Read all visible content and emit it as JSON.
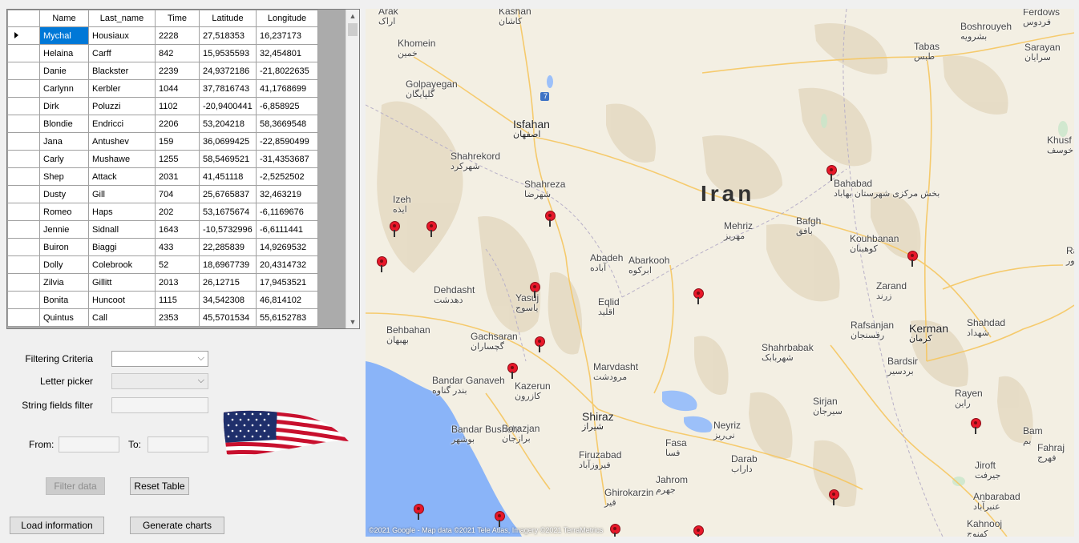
{
  "grid": {
    "columns": [
      "Name",
      "Last_name",
      "Time",
      "Latitude",
      "Longitude"
    ],
    "rows": [
      [
        "Mychal",
        "Housiaux",
        "2228",
        "27,518353",
        "16,237173"
      ],
      [
        "Helaina",
        "Carff",
        "842",
        "15,9535593",
        "32,454801"
      ],
      [
        "Danie",
        "Blackster",
        "2239",
        "24,9372186",
        "-21,8022635"
      ],
      [
        "Carlynn",
        "Kerbler",
        "1044",
        "37,7816743",
        "41,1768699"
      ],
      [
        "Dirk",
        "Poluzzi",
        "1102",
        "-20,9400441",
        "-6,858925"
      ],
      [
        "Blondie",
        "Endricci",
        "2206",
        "53,204218",
        "58,3669548"
      ],
      [
        "Jana",
        "Antushev",
        "159",
        "36,0699425",
        "-22,8590499"
      ],
      [
        "Carly",
        "Mushawe",
        "1255",
        "58,5469521",
        "-31,4353687"
      ],
      [
        "Shep",
        "Attack",
        "2031",
        "41,451118",
        "-2,5252502"
      ],
      [
        "Dusty",
        "Gill",
        "704",
        "25,6765837",
        "32,463219"
      ],
      [
        "Romeo",
        "Haps",
        "202",
        "53,1675674",
        "-6,1169676"
      ],
      [
        "Jennie",
        "Sidnall",
        "1643",
        "-10,5732996",
        "-6,6111441"
      ],
      [
        "Buiron",
        "Biaggi",
        "433",
        "22,285839",
        "14,9269532"
      ],
      [
        "Dolly",
        "Colebrook",
        "52",
        "18,6967739",
        "20,4314732"
      ],
      [
        "Zilvia",
        "Gillitt",
        "2013",
        "26,12715",
        "17,9453521"
      ],
      [
        "Bonita",
        "Huncoot",
        "1115",
        "34,542308",
        "46,814102"
      ],
      [
        "Quintus",
        "Call",
        "2353",
        "45,5701534",
        "55,6152783"
      ]
    ]
  },
  "filters": {
    "filtering_criteria_label": "Filtering Criteria",
    "letter_picker_label": "Letter picker",
    "string_filter_label": "String fields filter",
    "from_label": "From:",
    "to_label": "To:"
  },
  "buttons": {
    "filter_data": "Filter data",
    "reset_table": "Reset Table",
    "load_information": "Load information",
    "generate_charts": "Generate charts"
  },
  "flag": "us-flag-image",
  "map": {
    "country": "Iran",
    "attribution": "©2021 Google - Map data ©2021 Tele Atlas, Imagery ©2021 TerraMetrics",
    "cities": [
      {
        "en": "Kashan",
        "fa": "کاشان"
      },
      {
        "en": "Khomein",
        "fa": "خمین"
      },
      {
        "en": "Golpayegan",
        "fa": "گلپایگان"
      },
      {
        "en": "Isfahan",
        "fa": "اصفهان"
      },
      {
        "en": "Shahrekord",
        "fa": "شهرکرد"
      },
      {
        "en": "Shahreza",
        "fa": "شهرضا"
      },
      {
        "en": "Izeh",
        "fa": "ایذه"
      },
      {
        "en": "Tabas",
        "fa": "طبس"
      },
      {
        "en": "Ferdows",
        "fa": "فردوس"
      },
      {
        "en": "Boshrouyeh",
        "fa": "بشرویه"
      },
      {
        "en": "Sarayan",
        "fa": "سرایان"
      },
      {
        "en": "Khusf",
        "fa": "خوسف"
      },
      {
        "en": "Bahabad",
        "fa": "بخش مرکزی شهرستان بهاباد"
      },
      {
        "en": "Mehriz",
        "fa": "مهریز"
      },
      {
        "en": "Bafgh",
        "fa": "بافق"
      },
      {
        "en": "Kouhbanan",
        "fa": "کوهبنان"
      },
      {
        "en": "Abadeh",
        "fa": "آباده"
      },
      {
        "en": "Abarkooh",
        "fa": "ابرکوه"
      },
      {
        "en": "Dehdasht",
        "fa": "دهدشت"
      },
      {
        "en": "Yasuj",
        "fa": "یاسوج"
      },
      {
        "en": "Eqlid",
        "fa": "اقلید"
      },
      {
        "en": "Zarand",
        "fa": "زرند"
      },
      {
        "en": "Rafsanjan",
        "fa": "رفسنجان"
      },
      {
        "en": "Kerman",
        "fa": "کرمان"
      },
      {
        "en": "Behbahan",
        "fa": "بهبهان"
      },
      {
        "en": "Gachsaran",
        "fa": "گچساران"
      },
      {
        "en": "Shahrbabak",
        "fa": "شهربابک"
      },
      {
        "en": "Shahdad",
        "fa": "شهداد"
      },
      {
        "en": "Bardsir",
        "fa": "بردسیر"
      },
      {
        "en": "Bandar Ganaveh",
        "fa": "بندر گناوه"
      },
      {
        "en": "Kazerun",
        "fa": "کازرون"
      },
      {
        "en": "Marvdasht",
        "fa": "مرودشت"
      },
      {
        "en": "Sirjan",
        "fa": "سیرجان"
      },
      {
        "en": "Rayen",
        "fa": "راین"
      },
      {
        "en": "Shiraz",
        "fa": "شیراز"
      },
      {
        "en": "Neyriz",
        "fa": "نی‌ریز"
      },
      {
        "en": "Bam",
        "fa": "بم"
      },
      {
        "en": "Bandar Bushehr",
        "fa": "بوشهر"
      },
      {
        "en": "Borazjan",
        "fa": "برازجان"
      },
      {
        "en": "Fasa",
        "fa": "فسا"
      },
      {
        "en": "Firuzabad",
        "fa": "فیروزآباد"
      },
      {
        "en": "Darab",
        "fa": "داراب"
      },
      {
        "en": "Jiroft",
        "fa": "جیرفت"
      },
      {
        "en": "Fahraj",
        "fa": "فهرج"
      },
      {
        "en": "Jahrom",
        "fa": "جهرم"
      },
      {
        "en": "Ghirokarzin",
        "fa": "قیر"
      },
      {
        "en": "Anbarabad",
        "fa": "عنبرآباد"
      },
      {
        "en": "Kahnooj",
        "fa": "کهنوج"
      },
      {
        "en": "Arak",
        "fa": "اراک"
      },
      {
        "en": "Ravar",
        "fa": "راور"
      }
    ],
    "road_marker": "7",
    "pin_count": 16
  }
}
